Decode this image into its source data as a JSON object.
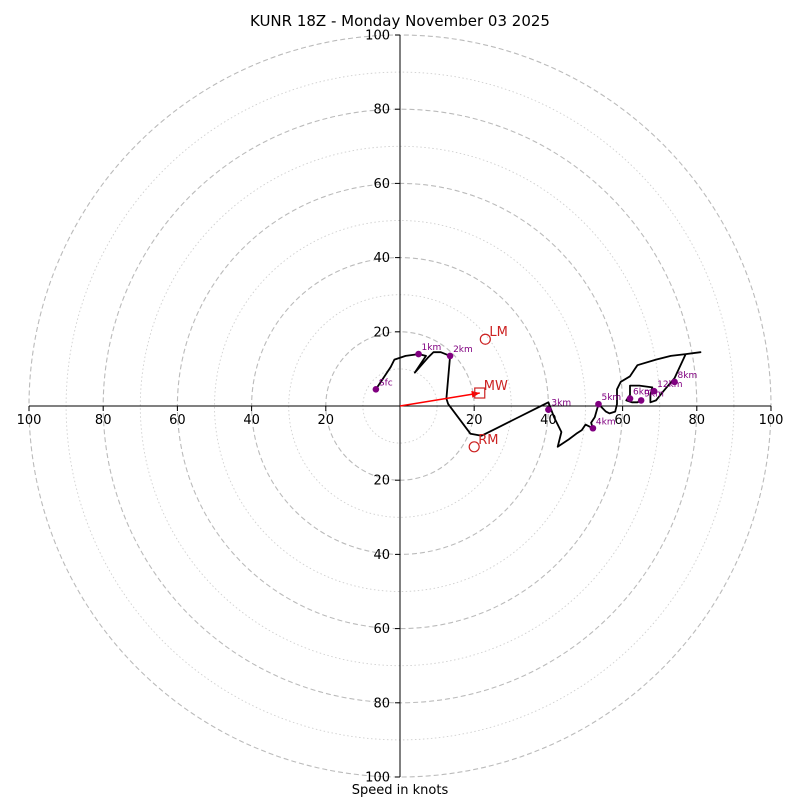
{
  "chart_data": {
    "type": "hodograph",
    "title": "KUNR 18Z - Monday November 03 2025",
    "xlabel": "Speed in knots",
    "ylabel": "",
    "xlim": [
      -100,
      100
    ],
    "ylim": [
      -100,
      100
    ],
    "units": "knots",
    "rings_major": [
      20,
      40,
      60,
      80,
      100
    ],
    "rings_minor": [
      10,
      30,
      50,
      70,
      90
    ],
    "tick_labels_x": [
      "100",
      "80",
      "60",
      "40",
      "20",
      "20",
      "40",
      "60",
      "80",
      "100"
    ],
    "tick_values_x": [
      -100,
      -80,
      -60,
      -40,
      -20,
      20,
      40,
      60,
      80,
      100
    ],
    "tick_labels_y": [
      "100",
      "80",
      "60",
      "40",
      "20",
      "20",
      "40",
      "60",
      "80",
      "100"
    ],
    "tick_values_y": [
      100,
      80,
      60,
      40,
      20,
      -20,
      -40,
      -60,
      -80,
      -100
    ],
    "colors": {
      "profile_line": "#000000",
      "level_marker": "#800080",
      "motion": "#cc2222",
      "mean_wind_vector": "#ff0000",
      "ring": "#bbbbbb"
    },
    "profile": [
      [
        -6.5,
        4.5
      ],
      [
        -2.5,
        10.5
      ],
      [
        -1.5,
        12.5
      ],
      [
        1.5,
        13.5
      ],
      [
        5,
        14
      ],
      [
        7,
        13.5
      ],
      [
        4,
        9
      ],
      [
        7.5,
        13
      ],
      [
        9,
        14.5
      ],
      [
        11,
        14.5
      ],
      [
        13.5,
        13.5
      ],
      [
        12.5,
        2
      ],
      [
        13,
        0.5
      ],
      [
        19,
        -7.5
      ],
      [
        22,
        -8
      ],
      [
        26,
        -6
      ],
      [
        31,
        -3.5
      ],
      [
        36,
        -1
      ],
      [
        40,
        1
      ],
      [
        41.5,
        -3
      ],
      [
        43.5,
        -7
      ],
      [
        42.5,
        -11
      ],
      [
        45.5,
        -9
      ],
      [
        47.5,
        -7.5
      ],
      [
        49,
        -6.5
      ],
      [
        50,
        -5
      ],
      [
        52,
        -6
      ],
      [
        51.5,
        -4.5
      ],
      [
        52.5,
        -3
      ],
      [
        53.5,
        0.5
      ],
      [
        55.5,
        -1.5
      ],
      [
        56.5,
        -2
      ],
      [
        58,
        -1.5
      ],
      [
        58.5,
        0.5
      ],
      [
        58.5,
        1.5
      ],
      [
        58.5,
        4.5
      ],
      [
        59.5,
        6.5
      ],
      [
        62,
        8
      ],
      [
        64,
        11
      ],
      [
        69,
        12.5
      ],
      [
        73,
        13.5
      ],
      [
        77,
        14
      ],
      [
        81,
        14.5
      ],
      [
        77,
        14
      ],
      [
        74,
        7.5
      ],
      [
        71,
        4
      ],
      [
        69,
        1.5
      ],
      [
        67.5,
        1
      ],
      [
        67.5,
        3
      ],
      [
        68,
        5
      ],
      [
        64.5,
        5.5
      ],
      [
        62,
        5.5
      ],
      [
        62,
        3
      ],
      [
        61,
        1.5
      ],
      [
        62.5,
        1
      ],
      [
        64,
        1
      ],
      [
        65,
        1.5
      ]
    ],
    "levels": [
      {
        "label": "Sfc",
        "u": -6.5,
        "v": 4.5
      },
      {
        "label": "1km",
        "u": 5,
        "v": 14
      },
      {
        "label": "2km",
        "u": 13.5,
        "v": 13.5
      },
      {
        "label": "3km",
        "u": 40,
        "v": -1
      },
      {
        "label": "4km",
        "u": 52,
        "v": -6
      },
      {
        "label": "5km",
        "u": 53.5,
        "v": 0.5
      },
      {
        "label": "6km",
        "u": 62,
        "v": 2
      },
      {
        "label": "9km",
        "u": 65,
        "v": 1.5
      },
      {
        "label": "12km",
        "u": 68.5,
        "v": 4
      },
      {
        "label": "8km",
        "u": 74,
        "v": 6.5
      }
    ],
    "storm_motion": [
      {
        "label": "LM",
        "u": 23,
        "v": 18,
        "marker": "circle"
      },
      {
        "label": "RM",
        "u": 20,
        "v": -11,
        "marker": "circle"
      },
      {
        "label": "MW",
        "u": 21.5,
        "v": 3.5,
        "marker": "square"
      }
    ],
    "mean_wind_vector": {
      "u": 21.5,
      "v": 3.5
    },
    "grid": true
  }
}
